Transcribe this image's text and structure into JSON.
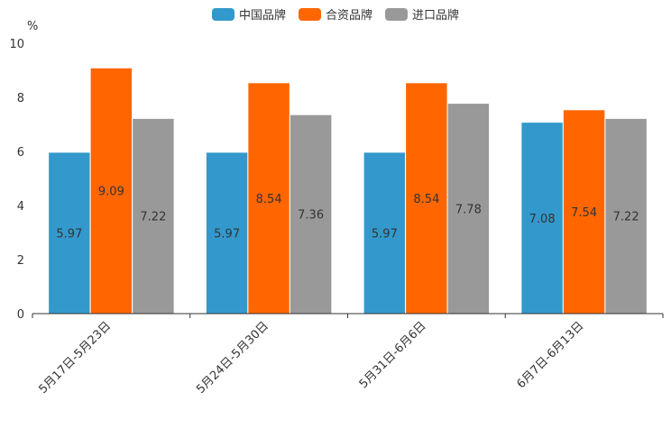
{
  "chart_data": {
    "type": "bar",
    "title": "",
    "xlabel": "",
    "ylabel": "%",
    "ylim": [
      0,
      10
    ],
    "yticks": [
      "0",
      "2",
      "4",
      "6",
      "8",
      "10"
    ],
    "grid": false,
    "legend_position": "top-center",
    "categories": [
      "5月17日-5月23日",
      "5月24日-5月30日",
      "5月31日-6月6日",
      "6月7日-6月13日"
    ],
    "series": [
      {
        "name": "中国品牌",
        "color": "#3399cc",
        "values": [
          5.97,
          5.97,
          5.97,
          7.08
        ],
        "labels": [
          "5.97",
          "5.97",
          "5.97",
          "7.08"
        ]
      },
      {
        "name": "合资品牌",
        "color": "#ff6600",
        "values": [
          9.09,
          8.54,
          8.54,
          7.54
        ],
        "labels": [
          "9.09",
          "8.54",
          "8.54",
          "7.54"
        ]
      },
      {
        "name": "进口品牌",
        "color": "#999999",
        "values": [
          7.22,
          7.36,
          7.78,
          7.22
        ],
        "labels": [
          "7.22",
          "7.36",
          "7.78",
          "7.22"
        ]
      }
    ]
  }
}
